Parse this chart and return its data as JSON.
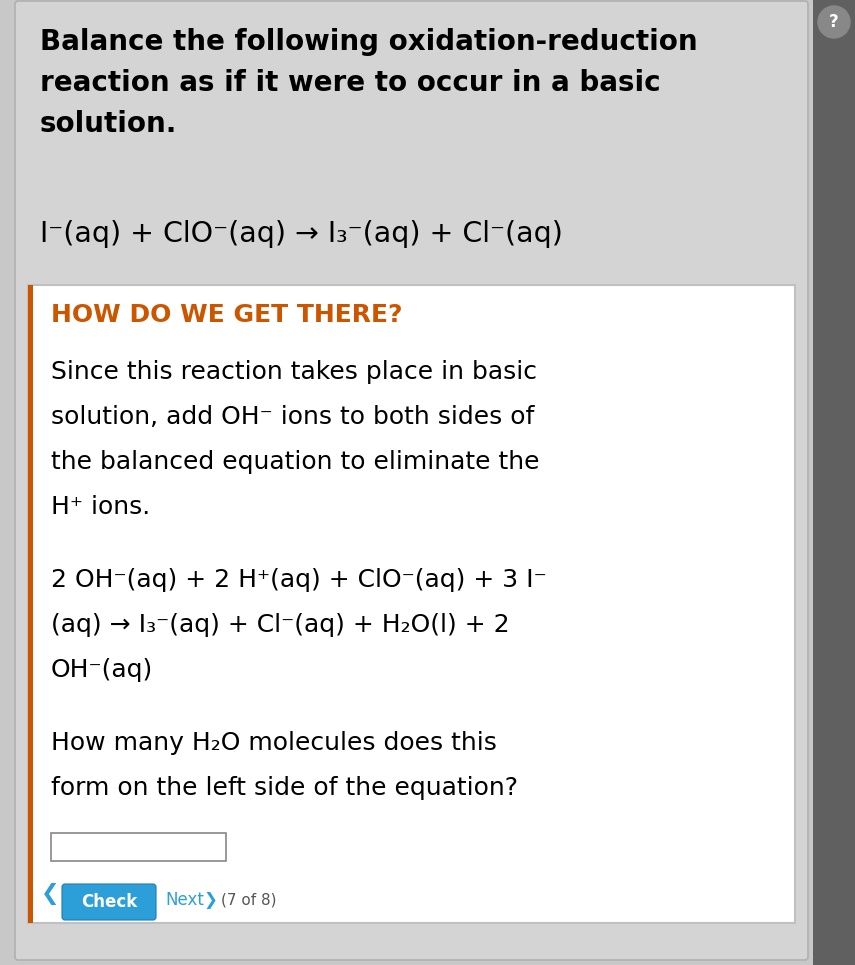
{
  "bg_color": "#d4d4d4",
  "outer_bg": "#c8c8c8",
  "white_box_color": "#ffffff",
  "sidebar_color": "#606060",
  "title_text": "Balance the following oxidation-reduction\nreaction as if it were to occur in a basic\nsolution.",
  "reaction_line": "I⁻(aq) + ClO⁻(aq) → I₃⁻(aq) + Cl⁻(aq)",
  "how_label": "HOW DO WE GET THERE?",
  "how_color": "#cc5500",
  "para1_line1": "Since this reaction takes place in basic",
  "para1_line2": "solution, add OH⁻ ions to both sides of",
  "para1_line3": "the balanced equation to eliminate the",
  "para1_line4": "H⁺ ions.",
  "eq_line1": "2 OH⁻(aq) + 2 H⁺(aq) + ClO⁻(aq) + 3 I⁻",
  "eq_line2": "(aq) → I₃⁻(aq) + Cl⁻(aq) + H₂O(l) + 2",
  "eq_line3": "OH⁻(aq)",
  "q_line1": "How many H₂O molecules does this",
  "q_line2": "form on the left side of the equation?",
  "check_btn_color": "#2d9fd8",
  "check_btn_text": "Check",
  "next_text": "Next",
  "page_text": "(7 of 8)",
  "figw": 8.55,
  "figh": 9.65,
  "dpi": 100
}
